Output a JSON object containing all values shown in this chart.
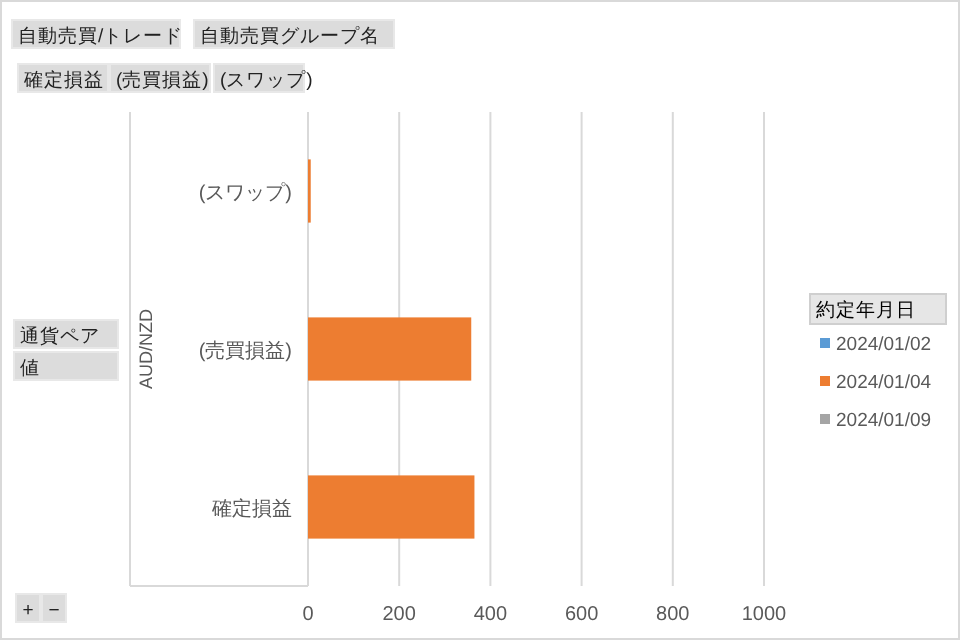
{
  "chart_data": {
    "type": "bar",
    "orientation": "horizontal",
    "categories": [
      "(スワップ)",
      "(売買損益)",
      "確定損益"
    ],
    "series": [
      {
        "name": "2024/01/02",
        "color": "#5b9bd5",
        "values": [
          null,
          null,
          null
        ]
      },
      {
        "name": "2024/01/04",
        "color": "#ed7d31",
        "values": [
          6,
          358,
          365
        ]
      },
      {
        "name": "2024/01/09",
        "color": "#a5a5a5",
        "values": [
          null,
          null,
          null
        ]
      }
    ],
    "xlim": [
      0,
      1000
    ],
    "xticks": [
      0,
      200,
      400,
      600,
      800,
      1000
    ],
    "grid": "x",
    "ylabel": "AUD/NZD",
    "legend": "right",
    "legend_title": "約定年月日",
    "annotations": [
      "自動売買/トレード",
      "自動売買グループ名",
      "確定損益",
      "(売買損益)",
      "(スワップ)",
      "通貨ペア",
      "値",
      "+",
      "−"
    ]
  }
}
